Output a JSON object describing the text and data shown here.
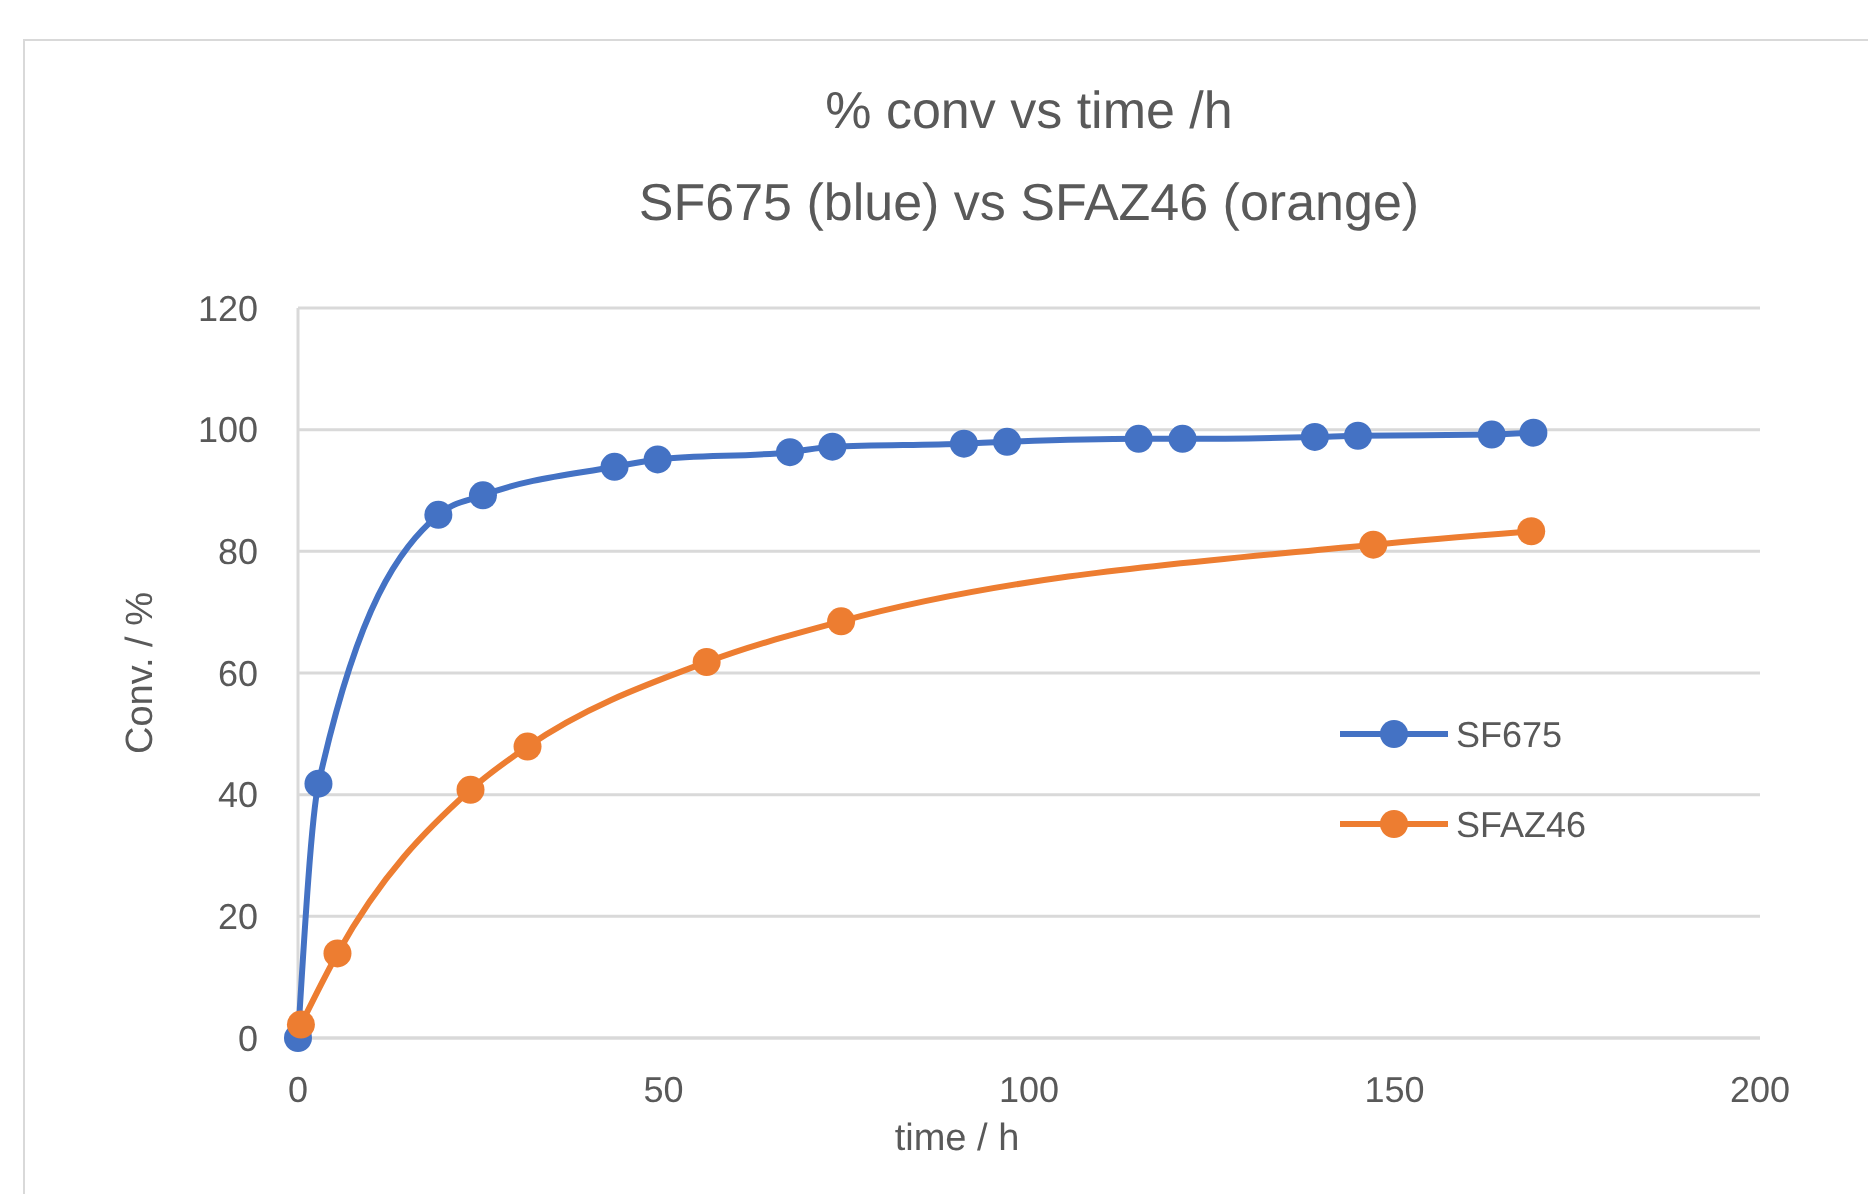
{
  "chart_data": {
    "type": "line",
    "title": "% conv vs time /h",
    "subtitle": "SF675 (blue) vs SFAZ46 (orange)",
    "xlabel": "time / h",
    "ylabel": "Conv. / %",
    "series": [
      {
        "name": "SF675",
        "color": "#4472c4",
        "x": [
          0,
          2.8,
          19.2,
          25.3,
          43.3,
          49.2,
          67.3,
          73.1,
          91.1,
          97.0,
          115.0,
          121.0,
          139.1,
          145.0,
          163.3,
          169.0
        ],
        "values": [
          0,
          41.8,
          86.0,
          89.2,
          93.9,
          95.1,
          96.3,
          97.2,
          97.7,
          98.0,
          98.5,
          98.5,
          98.8,
          99.0,
          99.2,
          99.5
        ]
      },
      {
        "name": "SFAZ46",
        "color": "#ed7d31",
        "x": [
          0.4,
          5.4,
          23.6,
          31.4,
          55.9,
          74.3,
          147.1,
          168.7
        ],
        "values": [
          2.2,
          13.9,
          40.8,
          47.9,
          61.8,
          68.5,
          81.1,
          83.3
        ]
      }
    ],
    "xlim": [
      0,
      200
    ],
    "xticks": [
      0,
      50,
      100,
      150,
      200
    ],
    "ylim": [
      0,
      120
    ],
    "yticks": [
      0,
      20,
      40,
      60,
      80,
      100,
      120
    ],
    "grid": "y",
    "legend": "right",
    "marker": "circle",
    "line_style": "solid"
  }
}
